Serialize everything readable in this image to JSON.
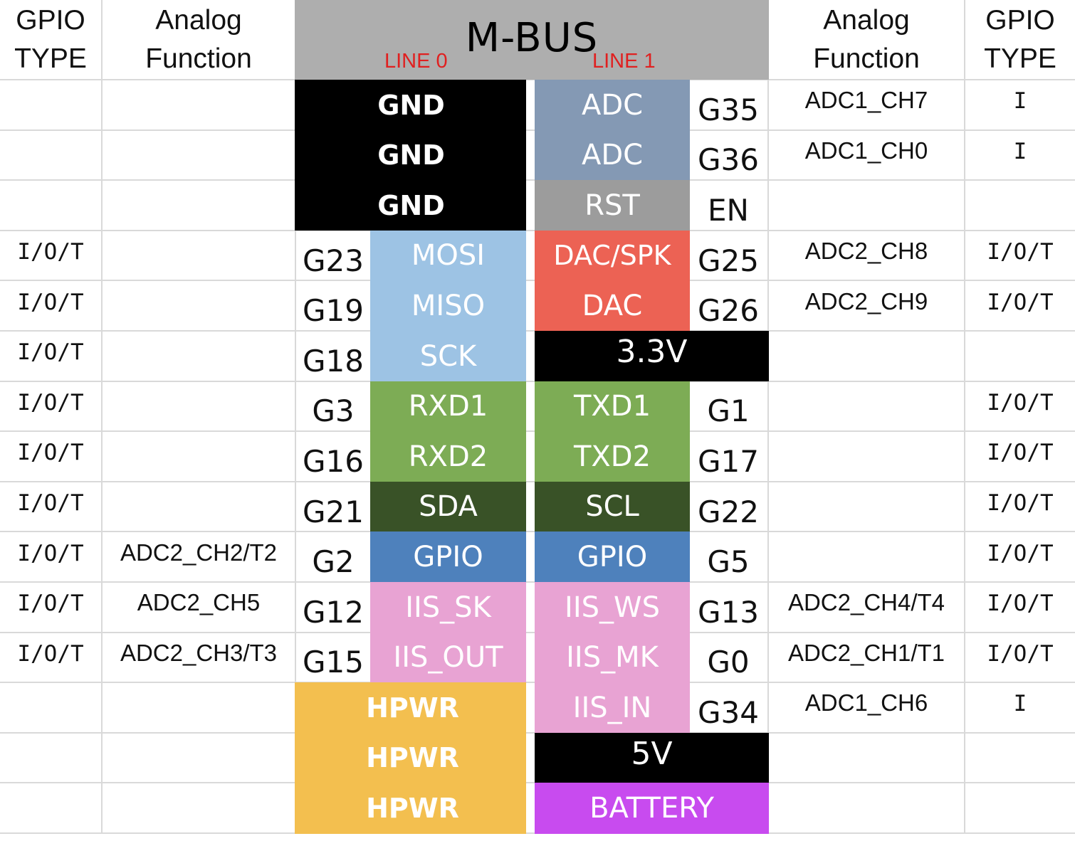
{
  "header": {
    "left_gpio": [
      "GPIO",
      "TYPE"
    ],
    "left_analog": [
      "Analog",
      "Function"
    ],
    "title": "M-BUS",
    "line0": "LINE 0",
    "line1": "LINE 1",
    "right_analog": [
      "Analog",
      "Function"
    ],
    "right_gpio": [
      "GPIO",
      "TYPE"
    ]
  },
  "rows": [
    {
      "l_type": "",
      "l_analog": "",
      "l_pin": "",
      "l_func": "GND",
      "r_func": "ADC",
      "r_pin": "G35",
      "r_analog": "ADC1_CH7",
      "r_type": "I"
    },
    {
      "l_type": "",
      "l_analog": "",
      "l_pin": "",
      "l_func": "GND",
      "r_func": "ADC",
      "r_pin": "G36",
      "r_analog": "ADC1_CH0",
      "r_type": "I"
    },
    {
      "l_type": "",
      "l_analog": "",
      "l_pin": "",
      "l_func": "GND",
      "r_func": "RST",
      "r_pin": "EN",
      "r_analog": "",
      "r_type": ""
    },
    {
      "l_type": "I/O/T",
      "l_analog": "",
      "l_pin": "G23",
      "l_func": "MOSI",
      "r_func": "DAC/SPK",
      "r_pin": "G25",
      "r_analog": "ADC2_CH8",
      "r_type": "I/O/T"
    },
    {
      "l_type": "I/O/T",
      "l_analog": "",
      "l_pin": "G19",
      "l_func": "MISO",
      "r_func": "DAC",
      "r_pin": "G26",
      "r_analog": "ADC2_CH9",
      "r_type": "I/O/T"
    },
    {
      "l_type": "I/O/T",
      "l_analog": "",
      "l_pin": "G18",
      "l_func": "SCK",
      "r_func": "3.3V",
      "r_pin": "",
      "r_analog": "",
      "r_type": ""
    },
    {
      "l_type": "I/O/T",
      "l_analog": "",
      "l_pin": "G3",
      "l_func": "RXD1",
      "r_func": "TXD1",
      "r_pin": "G1",
      "r_analog": "",
      "r_type": "I/O/T"
    },
    {
      "l_type": "I/O/T",
      "l_analog": "",
      "l_pin": "G16",
      "l_func": "RXD2",
      "r_func": "TXD2",
      "r_pin": "G17",
      "r_analog": "",
      "r_type": "I/O/T"
    },
    {
      "l_type": "I/O/T",
      "l_analog": "",
      "l_pin": "G21",
      "l_func": "SDA",
      "r_func": "SCL",
      "r_pin": "G22",
      "r_analog": "",
      "r_type": "I/O/T"
    },
    {
      "l_type": "I/O/T",
      "l_analog": "ADC2_CH2/T2",
      "l_pin": "G2",
      "l_func": "GPIO",
      "r_func": "GPIO",
      "r_pin": "G5",
      "r_analog": "",
      "r_type": "I/O/T"
    },
    {
      "l_type": "I/O/T",
      "l_analog": "ADC2_CH5",
      "l_pin": "G12",
      "l_func": "IIS_SK",
      "r_func": "IIS_WS",
      "r_pin": "G13",
      "r_analog": "ADC2_CH4/T4",
      "r_type": "I/O/T"
    },
    {
      "l_type": "I/O/T",
      "l_analog": "ADC2_CH3/T3",
      "l_pin": "G15",
      "l_func": "IIS_OUT",
      "r_func": "IIS_MK",
      "r_pin": "G0",
      "r_analog": "ADC2_CH1/T1",
      "r_type": "I/O/T"
    },
    {
      "l_type": "",
      "l_analog": "",
      "l_pin": "",
      "l_func": "HPWR",
      "r_func": "IIS_IN",
      "r_pin": "G34",
      "r_analog": "ADC1_CH6",
      "r_type": "I"
    },
    {
      "l_type": "",
      "l_analog": "",
      "l_pin": "",
      "l_func": "HPWR",
      "r_func": "5V",
      "r_pin": "",
      "r_analog": "",
      "r_type": ""
    },
    {
      "l_type": "",
      "l_analog": "",
      "l_pin": "",
      "l_func": "HPWR",
      "r_func": "BATTERY",
      "r_pin": "",
      "r_analog": "",
      "r_type": ""
    }
  ],
  "colors": {
    "ground": "#000000",
    "adc": "#8499b4",
    "rst": "#9c9c9c",
    "spi": "#9dc3e4",
    "dac": "#ec6254",
    "uart": "#7dac55",
    "i2c": "#395227",
    "gpio": "#4e81bc",
    "iis": "#e8a3d3",
    "hpwr": "#f3bf4f",
    "battery": "#c84bef",
    "header_bg": "#aeaeae",
    "line_label": "#e02020"
  }
}
